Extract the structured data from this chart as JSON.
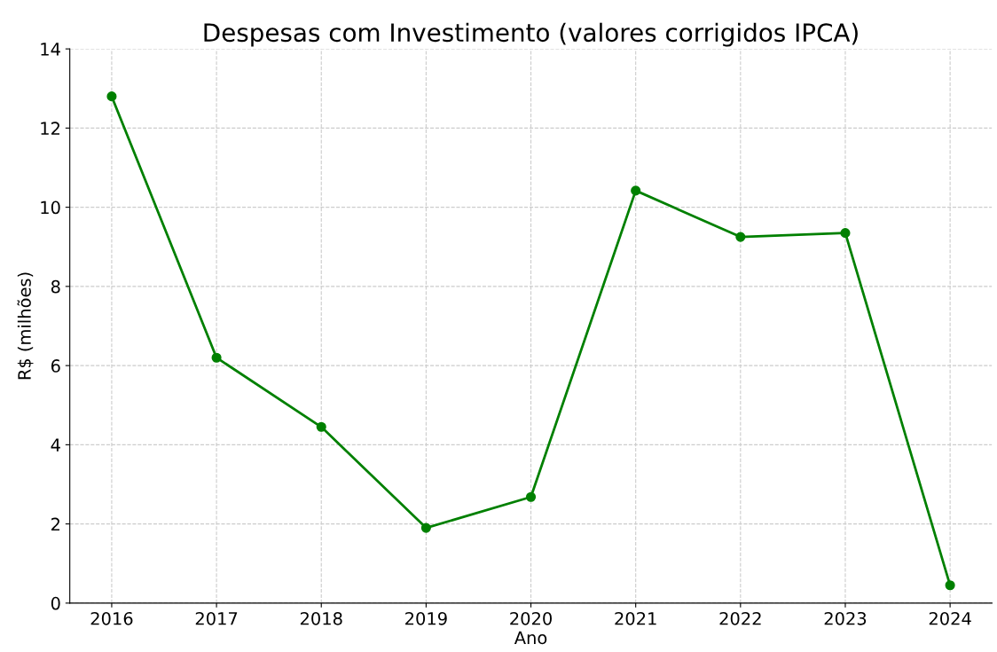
{
  "chart_data": {
    "type": "line",
    "title": "Despesas com Investimento (valores corrigidos IPCA)",
    "xlabel": "Ano",
    "ylabel": "R$ (milhões)",
    "x": [
      2016,
      2017,
      2018,
      2019,
      2020,
      2021,
      2022,
      2023,
      2024
    ],
    "series": [
      {
        "color": "#008000",
        "values": [
          12.8,
          6.2,
          4.45,
          1.9,
          2.68,
          10.42,
          9.25,
          9.35,
          0.45
        ]
      }
    ],
    "xlim": [
      2015.6,
      2024.4
    ],
    "xticks": [
      2016,
      2017,
      2018,
      2019,
      2020,
      2021,
      2022,
      2023,
      2024
    ],
    "ylim": [
      0,
      14
    ],
    "yticks": [
      0,
      2,
      4,
      6,
      8,
      10,
      12,
      14
    ],
    "grid": true,
    "marker": "circle",
    "line_style": "solid"
  }
}
